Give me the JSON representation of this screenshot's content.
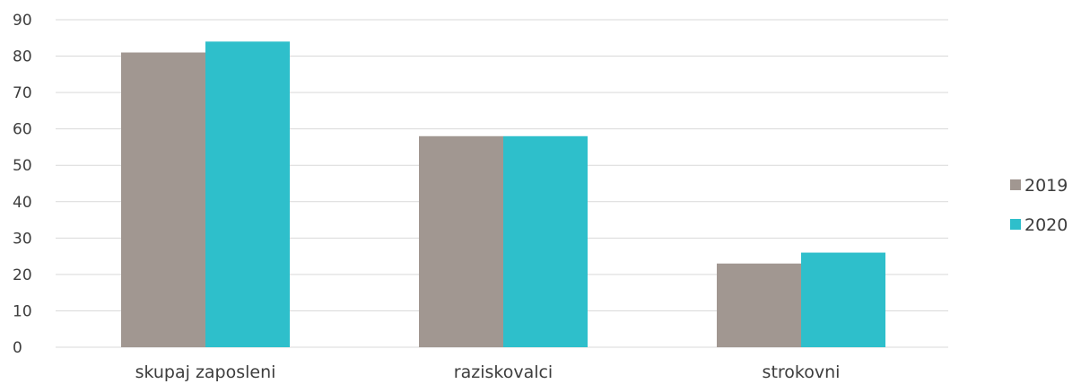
{
  "chart_data": {
    "type": "bar",
    "title": "",
    "xlabel": "",
    "ylabel": "",
    "categories": [
      "skupaj zaposleni",
      "raziskovalci",
      "strokovni"
    ],
    "series": [
      {
        "name": "2019",
        "color": "#a19791",
        "values": [
          81,
          58,
          23
        ]
      },
      {
        "name": "2020",
        "color": "#2ebfcb",
        "values": [
          84,
          58,
          26
        ]
      }
    ],
    "ylim": [
      0,
      90
    ],
    "yticks": [
      0,
      10,
      20,
      30,
      40,
      50,
      60,
      70,
      80,
      90
    ],
    "grid": true,
    "gridColor": "#d9d9d9",
    "legend": "right"
  }
}
